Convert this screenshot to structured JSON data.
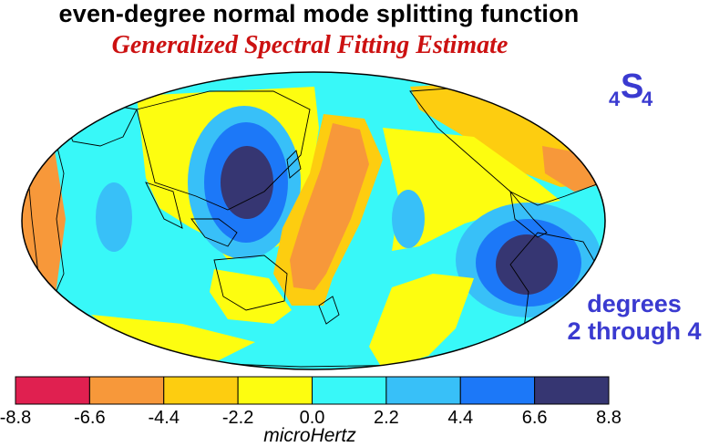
{
  "header": {
    "title": "even-degree normal mode splitting function",
    "subtitle": "Generalized Spectral Fitting Estimate"
  },
  "mode_label": {
    "prefix": "4",
    "letter": "S",
    "suffix": "4"
  },
  "degrees_label": {
    "line1": "degrees",
    "line2": "2 through 4"
  },
  "colorbar": {
    "unit": "microHertz",
    "ticks": [
      "-8.8",
      "-6.6",
      "-4.4",
      "-2.2",
      "0.0",
      "2.2",
      "4.4",
      "6.6",
      "8.8"
    ],
    "colors": [
      "#e02050",
      "#f7983a",
      "#fdcd10",
      "#fdfd10",
      "#38f8f8",
      "#38c0f8",
      "#1c78f8",
      "#363672"
    ]
  },
  "map": {
    "projection": "Hammer–Aitoff (global, Pacific-centred)",
    "background_color": "#38f8f8",
    "coastline_color": "#000000"
  }
}
